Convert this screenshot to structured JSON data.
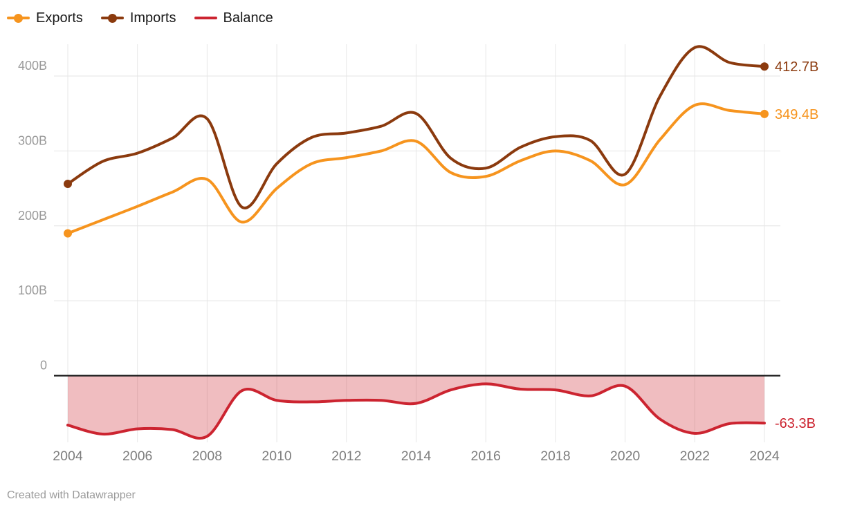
{
  "chart_data": {
    "type": "line",
    "title": "",
    "xlabel": "",
    "ylabel": "",
    "grid": true,
    "legend_position": "top-left",
    "x_years": [
      2004,
      2005,
      2006,
      2007,
      2008,
      2009,
      2010,
      2011,
      2012,
      2013,
      2014,
      2015,
      2016,
      2017,
      2018,
      2019,
      2020,
      2021,
      2022,
      2023,
      2024
    ],
    "x_tick_years": [
      2004,
      2006,
      2008,
      2010,
      2012,
      2014,
      2016,
      2018,
      2020,
      2022,
      2024
    ],
    "y_ticks": [
      {
        "value": 0,
        "label": "0"
      },
      {
        "value": 100,
        "label": "100B"
      },
      {
        "value": 200,
        "label": "200B"
      },
      {
        "value": 300,
        "label": "300B"
      },
      {
        "value": 400,
        "label": "400B"
      }
    ],
    "ylim": [
      -95,
      445
    ],
    "series": [
      {
        "name": "Exports",
        "color": "#F6941E",
        "end_label": "349.4B",
        "point_markers": true,
        "values": [
          190,
          208,
          226,
          245,
          262,
          205,
          250,
          283,
          291,
          300,
          313,
          271,
          266,
          287,
          300,
          287,
          255,
          315,
          361,
          354,
          349.4
        ]
      },
      {
        "name": "Imports",
        "color": "#8B3A0E",
        "end_label": "412.7B",
        "point_markers": true,
        "values": [
          256,
          286,
          297,
          317,
          343,
          225,
          283,
          318,
          324,
          333,
          350,
          290,
          277,
          305,
          319,
          314,
          269,
          373,
          438,
          418,
          412.7
        ]
      },
      {
        "name": "Balance",
        "color": "#CC2430",
        "end_label": "-63.3B",
        "point_markers": false,
        "fill_to_zero": true,
        "fill_opacity": 0.3,
        "values": [
          -66,
          -78,
          -71,
          -72,
          -81,
          -20,
          -33,
          -35,
          -33,
          -33,
          -37,
          -19,
          -11,
          -18,
          -19,
          -27,
          -14,
          -58,
          -77,
          -64,
          -63.3
        ]
      }
    ]
  },
  "footer": {
    "attribution": "Created with Datawrapper"
  }
}
